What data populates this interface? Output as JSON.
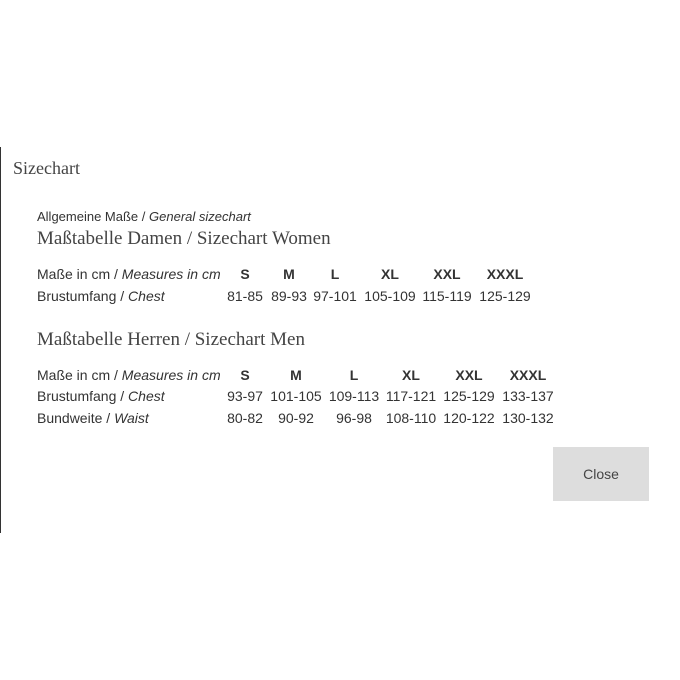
{
  "dialog": {
    "title": "Sizechart",
    "subtitle_de": "Allgemeine Maße /",
    "subtitle_en": "General sizechart",
    "close_label": "Close"
  },
  "women": {
    "heading": "Maßtabelle Damen / Sizechart Women",
    "header_label_de": "Maße in cm /",
    "header_label_en": "Measures in cm",
    "sizes": [
      "S",
      "M",
      "L",
      "XL",
      "XXL",
      "XXXL"
    ],
    "rows": [
      {
        "label_de": "Brustumfang /",
        "label_en": "Chest",
        "values": [
          "81-85",
          "89-93",
          "97-101",
          "105-109",
          "115-119",
          "125-129"
        ]
      }
    ]
  },
  "men": {
    "heading": "Maßtabelle Herren / Sizechart Men",
    "header_label_de": "Maße in cm /",
    "header_label_en": "Measures in cm",
    "sizes": [
      "S",
      "M",
      "L",
      "XL",
      "XXL",
      "XXXL"
    ],
    "rows": [
      {
        "label_de": "Brustumfang /",
        "label_en": "Chest",
        "values": [
          "93-97",
          "101-105",
          "109-113",
          "117-121",
          "125-129",
          "133-137"
        ]
      },
      {
        "label_de": "Bundweite /",
        "label_en": "Waist",
        "values": [
          "80-82",
          "90-92",
          "96-98",
          "108-110",
          "120-122",
          "130-132"
        ]
      }
    ]
  }
}
